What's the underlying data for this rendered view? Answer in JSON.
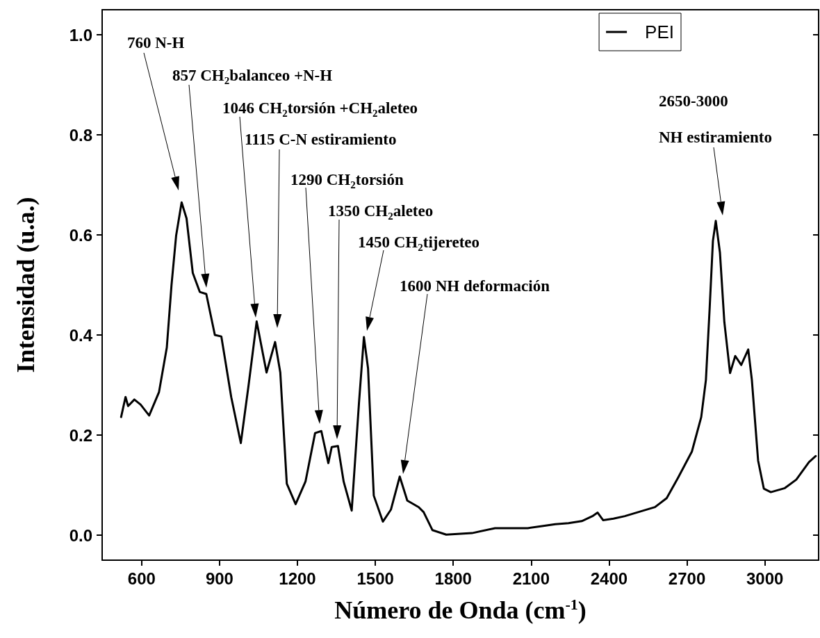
{
  "chart_data": {
    "type": "line",
    "xlabel": "Número de Onda (cm$^{-1}$)",
    "ylabel": "Intensidad (u.a.)",
    "xlim": [
      448,
      3207
    ],
    "xticks": [
      600,
      900,
      1200,
      1500,
      1800,
      2100,
      2400,
      2700,
      3000
    ],
    "ylim": [
      -0.05,
      1.05
    ],
    "yticks": [
      {
        "value": 0,
        "label": "0.0"
      },
      0.2,
      0.4,
      0.6,
      0.8,
      {
        "value": 1,
        "label": "1.0"
      }
    ],
    "grid": false,
    "legend": "top right",
    "marker": "none",
    "line_style": "solid",
    "series": [
      {
        "name": "PEI",
        "color": "#000000",
        "x": [
          521,
          538,
          548,
          572,
          596,
          629,
          667,
          697,
          715,
          733,
          754,
          773,
          797,
          824,
          849,
          882,
          907,
          945,
          982,
          1012,
          1043,
          1081,
          1114,
          1134,
          1159,
          1193,
          1231,
          1268,
          1292,
          1319,
          1332,
          1356,
          1378,
          1409,
          1437,
          1456,
          1472,
          1494,
          1529,
          1560,
          1594,
          1623,
          1667,
          1686,
          1720,
          1773,
          1872,
          1961,
          2087,
          2142,
          2193,
          2244,
          2295,
          2336,
          2356,
          2377,
          2417,
          2461,
          2577,
          2622,
          2666,
          2719,
          2755,
          2773,
          2787,
          2800,
          2811,
          2827,
          2844,
          2866,
          2886,
          2909,
          2936,
          2950,
          2974,
          2996,
          3023,
          3077,
          3121,
          3170,
          3196
        ],
        "values": [
          0.236,
          0.276,
          0.258,
          0.271,
          0.261,
          0.239,
          0.286,
          0.375,
          0.499,
          0.599,
          0.665,
          0.633,
          0.524,
          0.486,
          0.482,
          0.4,
          0.397,
          0.276,
          0.184,
          0.3,
          0.427,
          0.325,
          0.386,
          0.325,
          0.103,
          0.062,
          0.107,
          0.204,
          0.208,
          0.144,
          0.176,
          0.178,
          0.107,
          0.049,
          0.264,
          0.396,
          0.333,
          0.079,
          0.027,
          0.051,
          0.117,
          0.069,
          0.056,
          0.046,
          0.01,
          0.001,
          0.004,
          0.014,
          0.014,
          0.018,
          0.022,
          0.024,
          0.028,
          0.038,
          0.045,
          0.03,
          0.033,
          0.038,
          0.056,
          0.074,
          0.115,
          0.167,
          0.236,
          0.31,
          0.449,
          0.588,
          0.628,
          0.565,
          0.426,
          0.324,
          0.358,
          0.34,
          0.371,
          0.31,
          0.149,
          0.093,
          0.086,
          0.094,
          0.111,
          0.146,
          0.158
        ]
      }
    ],
    "annotations": [
      "760 N-H",
      "857 CH$_{2}$balanceo +N-H",
      "1046 CH$_{2}$torsión +CH$_{2}$aleteo",
      "1115 C-N estiramiento",
      "1290 CH$_{2}$torsión",
      "1350 CH$_{2}$aleteo",
      "1450 CH$_{2}$tijereteo",
      "1600 NH deformación",
      "2650-3000\nNH estiramiento"
    ]
  }
}
